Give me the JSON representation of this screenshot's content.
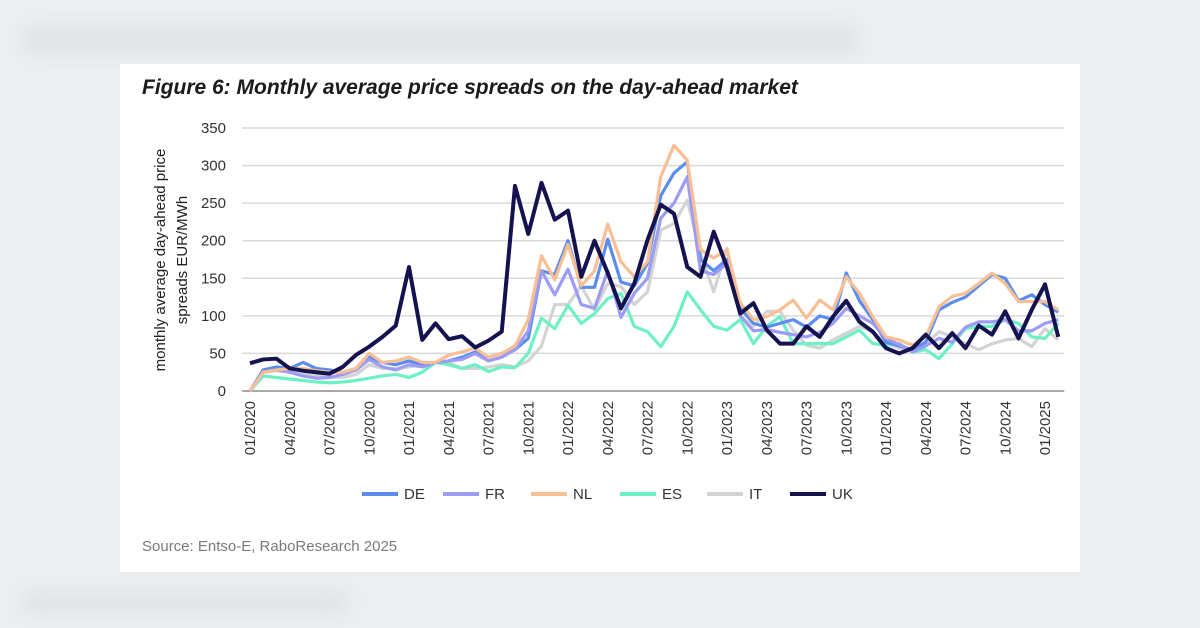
{
  "title": "Figure 6: Monthly average price spreads on the day-ahead market",
  "source": "Source: Entso-E, RaboResearch 2025",
  "chart_data": {
    "type": "line",
    "title": "Figure 6: Monthly average price spreads on the day-ahead market",
    "ylabel": [
      "monthly average day-ahead price",
      "spreads EUR/MWh"
    ],
    "xlabel": "",
    "ylim": [
      0,
      350
    ],
    "yticks": [
      0,
      50,
      100,
      150,
      200,
      250,
      300,
      350
    ],
    "grid": true,
    "legend": "bottom",
    "x_start": "01/2020",
    "x_end": "02/2025",
    "xtick_labels": [
      "01/2020",
      "04/2020",
      "07/2020",
      "10/2020",
      "01/2021",
      "04/2021",
      "07/2021",
      "10/2021",
      "01/2022",
      "04/2022",
      "07/2022",
      "10/2022",
      "01/2023",
      "04/2023",
      "07/2023",
      "10/2023",
      "01/2024",
      "04/2024",
      "07/2024",
      "10/2024",
      "01/2025"
    ],
    "series": [
      {
        "name": "DE",
        "color": "#5b8def",
        "values": [
          0,
          28,
          32,
          30,
          38,
          30,
          28,
          25,
          28,
          45,
          38,
          35,
          40,
          35,
          38,
          40,
          45,
          52,
          45,
          50,
          55,
          70,
          160,
          155,
          200,
          138,
          138,
          202,
          145,
          140,
          170,
          260,
          290,
          305,
          175,
          160,
          175,
          110,
          90,
          85,
          90,
          95,
          85,
          100,
          95,
          157,
          120,
          95,
          65,
          60,
          55,
          65,
          108,
          118,
          125,
          140,
          155,
          150,
          120,
          128,
          115,
          105
        ]
      },
      {
        "name": "FR",
        "color": "#9d9cf5",
        "values": [
          0,
          25,
          28,
          25,
          20,
          17,
          18,
          22,
          28,
          42,
          32,
          28,
          35,
          32,
          38,
          40,
          42,
          50,
          40,
          45,
          55,
          80,
          160,
          128,
          162,
          115,
          110,
          160,
          98,
          130,
          150,
          230,
          250,
          285,
          160,
          155,
          170,
          100,
          80,
          82,
          78,
          75,
          72,
          78,
          90,
          110,
          100,
          90,
          70,
          62,
          52,
          60,
          70,
          65,
          85,
          92,
          92,
          95,
          80,
          80,
          90,
          95
        ]
      },
      {
        "name": "NL",
        "color": "#f8bf95",
        "values": [
          0,
          25,
          28,
          30,
          30,
          27,
          25,
          25,
          30,
          50,
          38,
          40,
          45,
          38,
          38,
          48,
          52,
          57,
          45,
          50,
          60,
          95,
          180,
          148,
          195,
          140,
          160,
          222,
          172,
          152,
          172,
          285,
          327,
          307,
          188,
          177,
          188,
          117,
          95,
          99,
          108,
          121,
          97,
          121,
          108,
          152,
          130,
          99,
          72,
          68,
          61,
          72,
          112,
          126,
          130,
          143,
          157,
          143,
          119,
          119,
          119,
          108
        ]
      },
      {
        "name": "ES",
        "color": "#6ef0c7",
        "values": [
          0,
          20,
          18,
          16,
          14,
          12,
          11,
          12,
          14,
          17,
          20,
          22,
          18,
          25,
          38,
          35,
          30,
          35,
          26,
          32,
          31,
          50,
          97,
          83,
          114,
          90,
          103,
          123,
          130,
          86,
          79,
          59,
          86,
          132,
          108,
          86,
          81,
          95,
          63,
          86,
          99,
          63,
          63,
          63,
          63,
          72,
          81,
          63,
          61,
          63,
          52,
          55,
          43,
          63,
          83,
          86,
          86,
          95,
          90,
          72,
          70,
          90
        ]
      },
      {
        "name": "IT",
        "color": "#d3d3d3",
        "values": [
          0,
          25,
          27,
          25,
          22,
          20,
          18,
          18,
          22,
          35,
          30,
          30,
          32,
          35,
          38,
          38,
          30,
          30,
          32,
          35,
          32,
          40,
          60,
          115,
          115,
          140,
          108,
          143,
          139,
          115,
          132,
          214,
          223,
          254,
          183,
          132,
          190,
          99,
          86,
          106,
          106,
          81,
          61,
          57,
          68,
          77,
          86,
          79,
          63,
          57,
          55,
          63,
          79,
          72,
          63,
          55,
          63,
          68,
          70,
          59,
          83,
          68
        ]
      },
      {
        "name": "UK",
        "color": "#14124f",
        "values": [
          37,
          42,
          43,
          30,
          27,
          25,
          23,
          32,
          48,
          59,
          72,
          87,
          165,
          68,
          90,
          69,
          73,
          58,
          67,
          79,
          273,
          209,
          277,
          228,
          240,
          152,
          200,
          157,
          110,
          143,
          201,
          248,
          236,
          165,
          152,
          212,
          165,
          103,
          117,
          81,
          63,
          63,
          86,
          72,
          99,
          120,
          92,
          79,
          57,
          50,
          57,
          75,
          57,
          77,
          57,
          87,
          75,
          106,
          70,
          108,
          142,
          72
        ]
      }
    ]
  }
}
